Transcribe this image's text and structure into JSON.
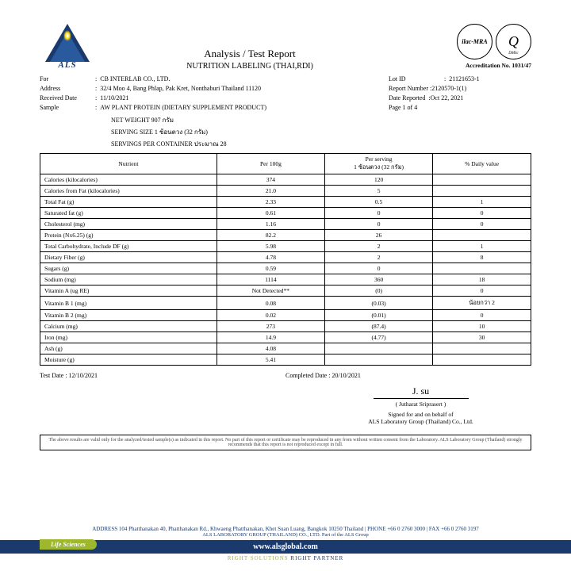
{
  "title1": "Analysis / Test Report",
  "title2": "NUTRITION LABELING (THAI,RDI)",
  "accreditation": "Accreditation No. 1031/47",
  "metaLeft": {
    "for": "CB INTERLAB CO., LTD.",
    "address": "32/4 Moo 4, Bang Phlap, Pak Kret, Nonthaburi Thailand 11120",
    "received": "11/10/2021",
    "sample": "AW PLANT PROTEIN (DIETARY SUPPLEMENT PRODUCT)"
  },
  "metaRight": {
    "lotId": "21121653-1",
    "reportNumber": "2120570-1(1)",
    "dateReported": "Oct 22, 2021",
    "page": "Page 1 of 4"
  },
  "product": {
    "netWeight": "NET WEIGHT  907 กรัม",
    "servingSize": "SERVING SIZE  1 ช้อนตวง (32 กรัม)",
    "servings": "SERVINGS PER CONTAINER  ประมาณ 28"
  },
  "headers": {
    "nutrient": "Nutrient",
    "per100g": "Per 100g",
    "perServing": "Per serving",
    "perServingSub": "1 ช้อนตวง (32 กรัม)",
    "daily": "% Daily value"
  },
  "rows": [
    [
      "Calories (kilocalories)",
      "374",
      "120",
      ""
    ],
    [
      "Calories from Fat  (kilocalories)",
      "21.0",
      "5",
      ""
    ],
    [
      "Total Fat (g)",
      "2.33",
      "0.5",
      "1"
    ],
    [
      "Saturated fat (g)",
      "0.61",
      "0",
      "0"
    ],
    [
      "Cholesterol (mg)",
      "1.16",
      "0",
      "0"
    ],
    [
      "Protein (Nx6.25) (g)",
      "82.2",
      "26",
      ""
    ],
    [
      "Total Carbohydrate, Include DF (g)",
      "5.98",
      "2",
      "1"
    ],
    [
      "Dietary Fiber (g)",
      "4.78",
      "2",
      "8"
    ],
    [
      "Sugars (g)",
      "0.59",
      "0",
      ""
    ],
    [
      "Sodium (mg)",
      "1114",
      "360",
      "18"
    ],
    [
      "Vitamin A (ug RE)",
      "Not Detected**",
      "(0)",
      "0"
    ],
    [
      "Vitamin B 1 (mg)",
      "0.08",
      "(0.03)",
      "น้อยกว่า 2"
    ],
    [
      "Vitamin B 2 (mg)",
      "0.02",
      "(0.01)",
      "0"
    ],
    [
      "Calcium (mg)",
      "273",
      "(87.4)",
      "10"
    ],
    [
      "Iron (mg)",
      "14.9",
      "(4.77)",
      "30"
    ],
    [
      "Ash (g)",
      "4.08",
      "",
      ""
    ],
    [
      "Moisture (g)",
      "5.41",
      "",
      ""
    ]
  ],
  "testDate": "Test Date : 12/10/2021",
  "completedDate": "Completed Date : 20/10/2021",
  "signature": {
    "script": "J. su",
    "name": "( Jutharat Sriprasert )",
    "line1": "Signed for and on behalf of",
    "line2": "ALS Laboratory Group (Thailand) Co., Ltd."
  },
  "disclaimer": "The above results are valid only for the analyzed/tested sample(s) as indicated in this report. No part of this report or certificate may be reproduced in any from without written consent from the Laboratory. ALS Laboratory Group (Thailand) strongly recommends that this report is not reproduced except in full.",
  "footer": {
    "addr": "ADDRESS 104 Phatthanakan 40, Phatthanakan Rd., Khwaeng Phatthanakan, Khet Suan Luang, Bangkok 10250 Thailand | PHONE +66 0 2760 3000 | FAX +66 0 2760 3197",
    "sub": "ALS LABORATORY GROUP (THAILAND) CO., LTD. Part of the ALS Group",
    "life": "Life Sciences",
    "url": "www.alsglobal.com",
    "tagline1": "RIGHT SOLUTIONS",
    "tagline2": "RIGHT PARTNER"
  }
}
